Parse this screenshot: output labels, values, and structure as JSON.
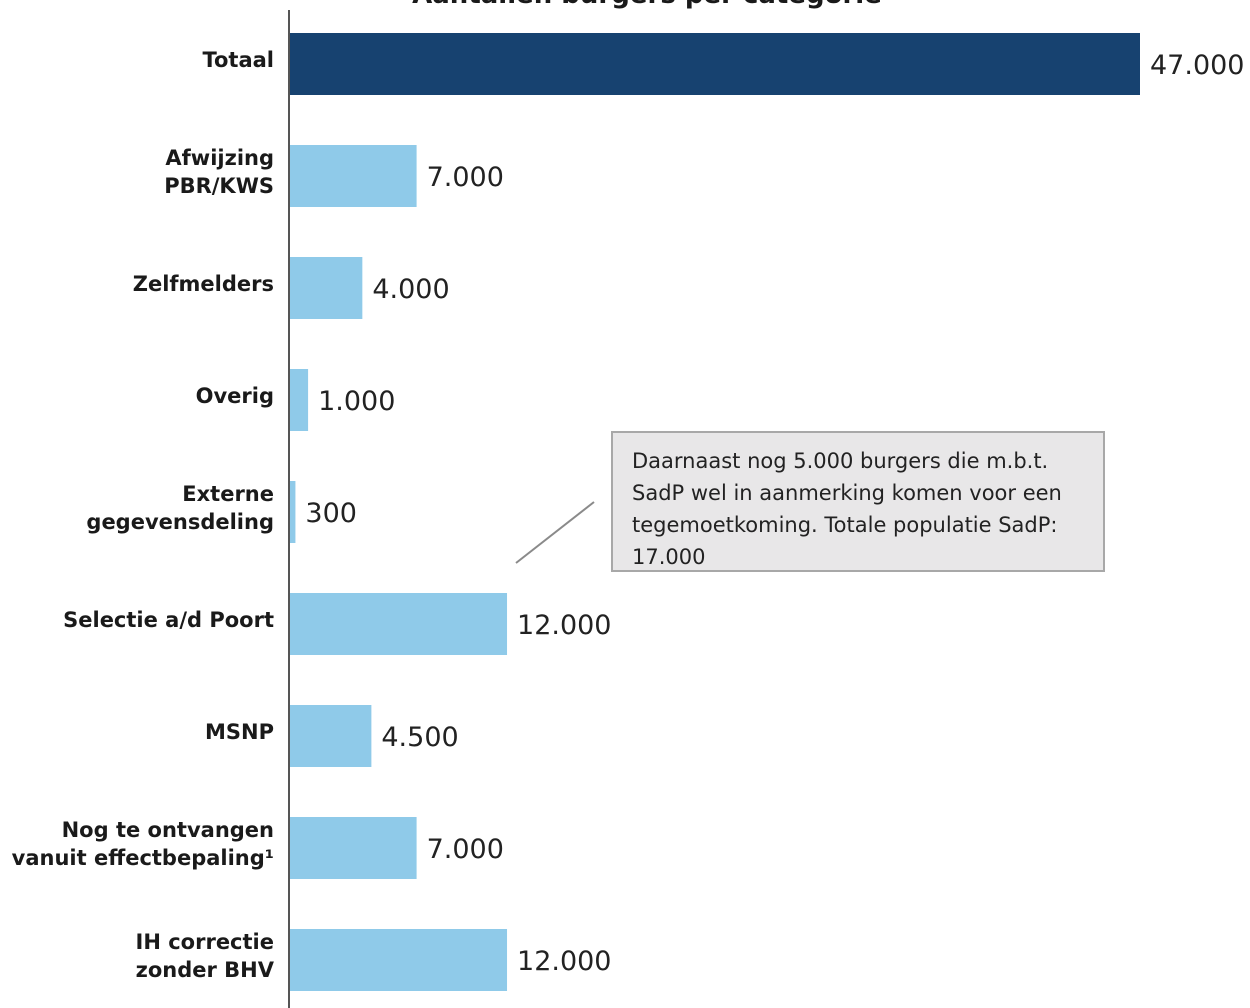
{
  "chart_data": {
    "type": "bar",
    "orientation": "horizontal",
    "title": "Aantallen burgers per categorie",
    "categories": [
      "Totaal",
      "Afwijzing PBR/KWS",
      "Zelfmelders",
      "Overig",
      "Externe gegevensdeling",
      "Selectie a/d Poort",
      "MSNP",
      "Nog te ontvangen vanuit effectbepaling¹",
      "IH correctie zonder BHV"
    ],
    "category_lines": [
      [
        "Totaal"
      ],
      [
        "Afwijzing",
        "PBR/KWS"
      ],
      [
        "Zelfmelders"
      ],
      [
        "Overig"
      ],
      [
        "Externe",
        "gegevensdeling"
      ],
      [
        "Selectie a/d Poort"
      ],
      [
        "MSNP"
      ],
      [
        "Nog te ontvangen",
        "vanuit effectbepaling¹"
      ],
      [
        "IH correctie",
        "zonder BHV"
      ]
    ],
    "values": [
      47000,
      7000,
      4000,
      1000,
      300,
      12000,
      4500,
      7000,
      12000
    ],
    "value_labels": [
      "47.000",
      "7.000",
      "4.000",
      "1.000",
      "300",
      "12.000",
      "4.500",
      "7.000",
      "12.000"
    ],
    "xlim": [
      0,
      47000
    ],
    "grid": false,
    "legend": "none",
    "colors": {
      "highlight": "#174270",
      "bar": "#8fcae9",
      "axis": "#555555"
    },
    "annotation": "Daarnaast nog 5.000 burgers die m.b.t. SadP wel in aanmerking komen voor een tegemoetkoming. Totale populatie SadP: 17.000"
  }
}
